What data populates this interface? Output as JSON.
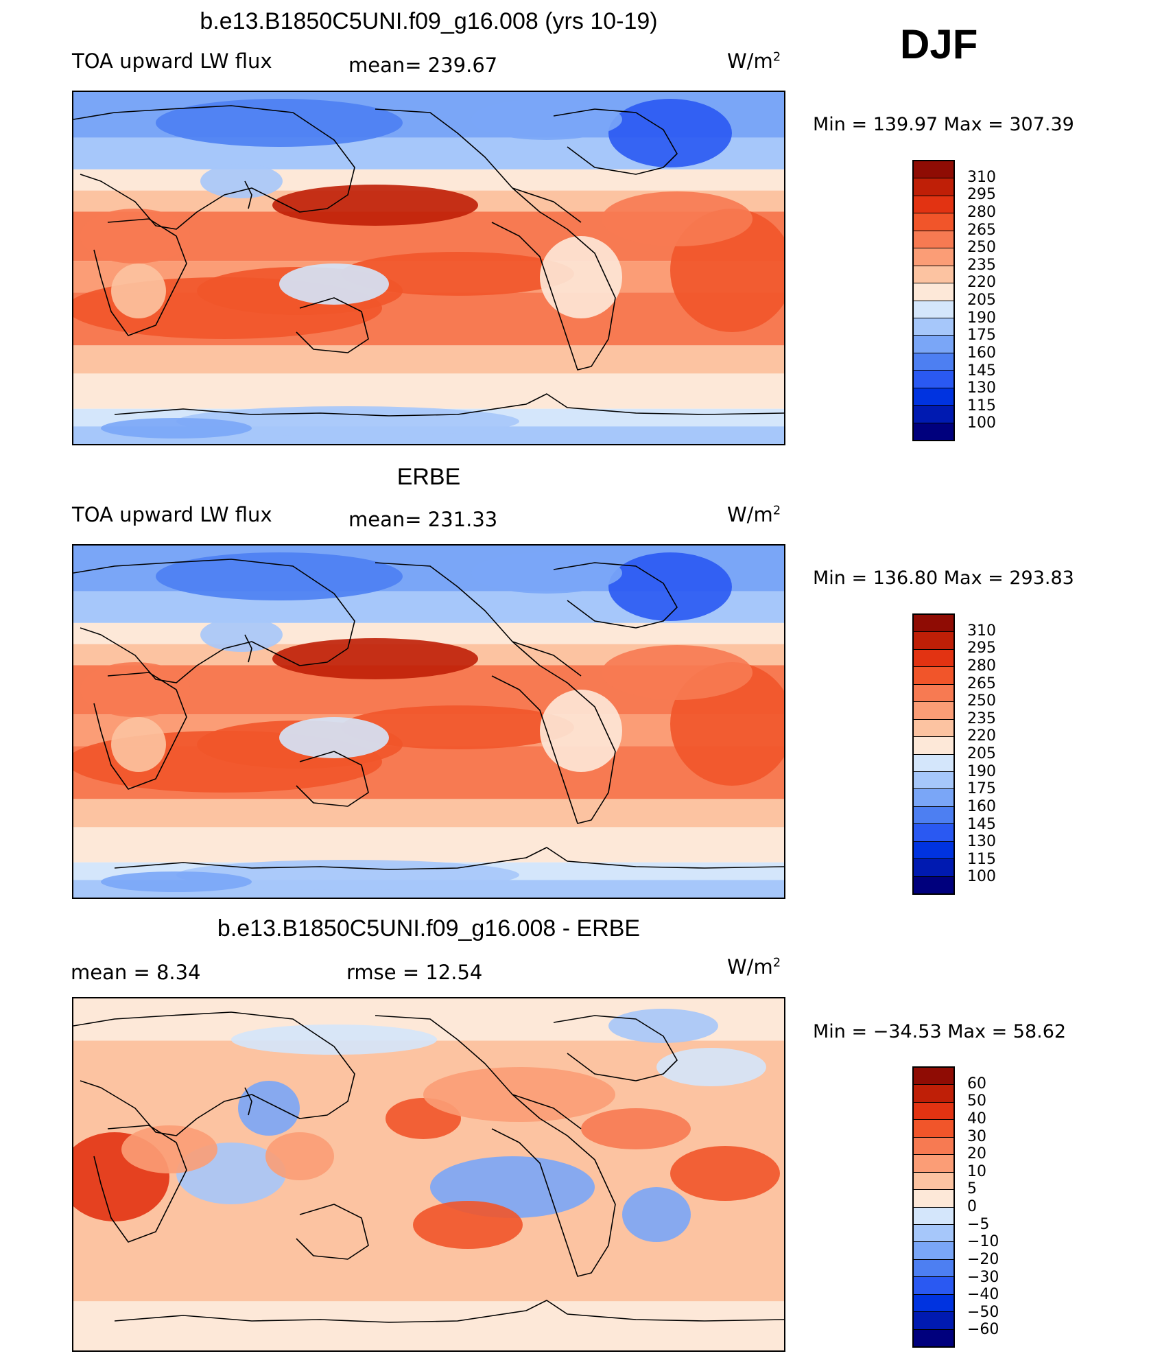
{
  "season": "DJF",
  "palette": {
    "main": [
      "#00007d",
      "#001ab1",
      "#0033e0",
      "#2a59f2",
      "#4d7ff2",
      "#7aa6f7",
      "#a6c7fa",
      "#d4e6fb",
      "#fde8d8",
      "#fcc3a1",
      "#fb9d76",
      "#f77a52",
      "#f1552a",
      "#e23312",
      "#bf1f07",
      "#8f0c04"
    ],
    "diff": [
      "#00007d",
      "#001ab1",
      "#0033e0",
      "#2a59f2",
      "#4d7ff2",
      "#7aa6f7",
      "#a6c7fa",
      "#d4e6fb",
      "#fde8d8",
      "#fcc3a1",
      "#fb9d76",
      "#f77a52",
      "#f1552a",
      "#e23312",
      "#bf1f07",
      "#8f0c04"
    ]
  },
  "panels": [
    {
      "title": "b.e13.B1850C5UNI.f09_g16.008 (yrs 10-19)",
      "left_label": "TOA upward LW flux",
      "center_label": "mean=  239.67",
      "units": "W/m",
      "units_sup": "2",
      "minmax": "Min  =  139.97  Max  =  307.39",
      "colorbar_ticks": [
        "310",
        "295",
        "280",
        "265",
        "250",
        "235",
        "220",
        "205",
        "190",
        "175",
        "160",
        "145",
        "130",
        "115",
        "100"
      ],
      "field_type": "flux"
    },
    {
      "title": "ERBE",
      "left_label": "TOA upward LW flux",
      "center_label": "mean=  231.33",
      "units": "W/m",
      "units_sup": "2",
      "minmax": "Min  =  136.80  Max  =  293.83",
      "colorbar_ticks": [
        "310",
        "295",
        "280",
        "265",
        "250",
        "235",
        "220",
        "205",
        "190",
        "175",
        "160",
        "145",
        "130",
        "115",
        "100"
      ],
      "field_type": "flux"
    },
    {
      "title": "b.e13.B1850C5UNI.f09_g16.008 - ERBE",
      "left_label": "mean  =      8.34",
      "center_label": "rmse  =     12.54",
      "units": "W/m",
      "units_sup": "2",
      "minmax": "Min  =  −34.53  Max  =    58.62",
      "colorbar_ticks": [
        "60",
        "50",
        "40",
        "30",
        "20",
        "10",
        "5",
        "0",
        "−5",
        "−10",
        "−20",
        "−30",
        "−40",
        "−50",
        "−60"
      ],
      "field_type": "diff"
    }
  ]
}
